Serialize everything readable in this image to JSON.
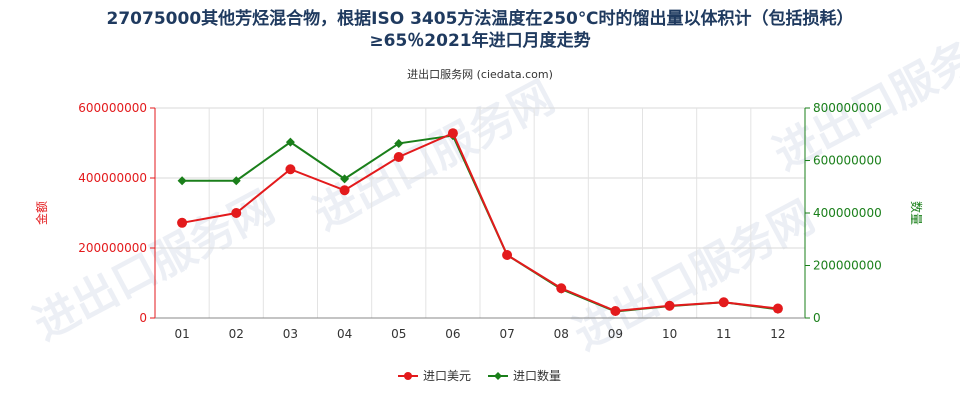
{
  "title_line1": "27075000其他芳烃混合物，根据ISO 3405方法温度在250℃时的馏出量以体积计（包括损耗）",
  "title_line2": "≥65％2021年进口月度走势",
  "subtitle": "进出口服务网 (ciedata.com)",
  "watermark": "进出口服务网",
  "colors": {
    "series_usd": "#e31a1c",
    "series_qty": "#1a7f1a",
    "left_axis": "#e31a1c",
    "right_axis": "#1a7f1a",
    "title": "#1f3a5f"
  },
  "chart_data": {
    "type": "line",
    "categories": [
      "01",
      "02",
      "03",
      "04",
      "05",
      "06",
      "07",
      "08",
      "09",
      "10",
      "11",
      "12"
    ],
    "left_axis": {
      "label": "金额",
      "ylim": [
        0,
        600000000
      ],
      "ticks": [
        0,
        200000000,
        400000000,
        600000000
      ],
      "tick_labels": [
        "0",
        "200000000",
        "400000000",
        "600000000"
      ]
    },
    "right_axis": {
      "label": "数量",
      "ylim": [
        0,
        800000000
      ],
      "ticks": [
        0,
        200000000,
        400000000,
        600000000,
        800000000
      ],
      "tick_labels": [
        "0",
        "200000000",
        "400000000",
        "600000000",
        "800000000"
      ]
    },
    "series": [
      {
        "name": "进口美元",
        "axis": "left",
        "color": "#e31a1c",
        "values": [
          272000000,
          300000000,
          425000000,
          365000000,
          460000000,
          528000000,
          180000000,
          85000000,
          20000000,
          35000000,
          45000000,
          27000000
        ]
      },
      {
        "name": "进口数量",
        "axis": "right",
        "color": "#1a7f1a",
        "values": [
          523000000,
          523000000,
          670000000,
          530000000,
          665000000,
          695000000,
          240000000,
          110000000,
          25000000,
          45000000,
          60000000,
          33000000
        ]
      }
    ],
    "grid": true,
    "legend_position": "bottom"
  }
}
